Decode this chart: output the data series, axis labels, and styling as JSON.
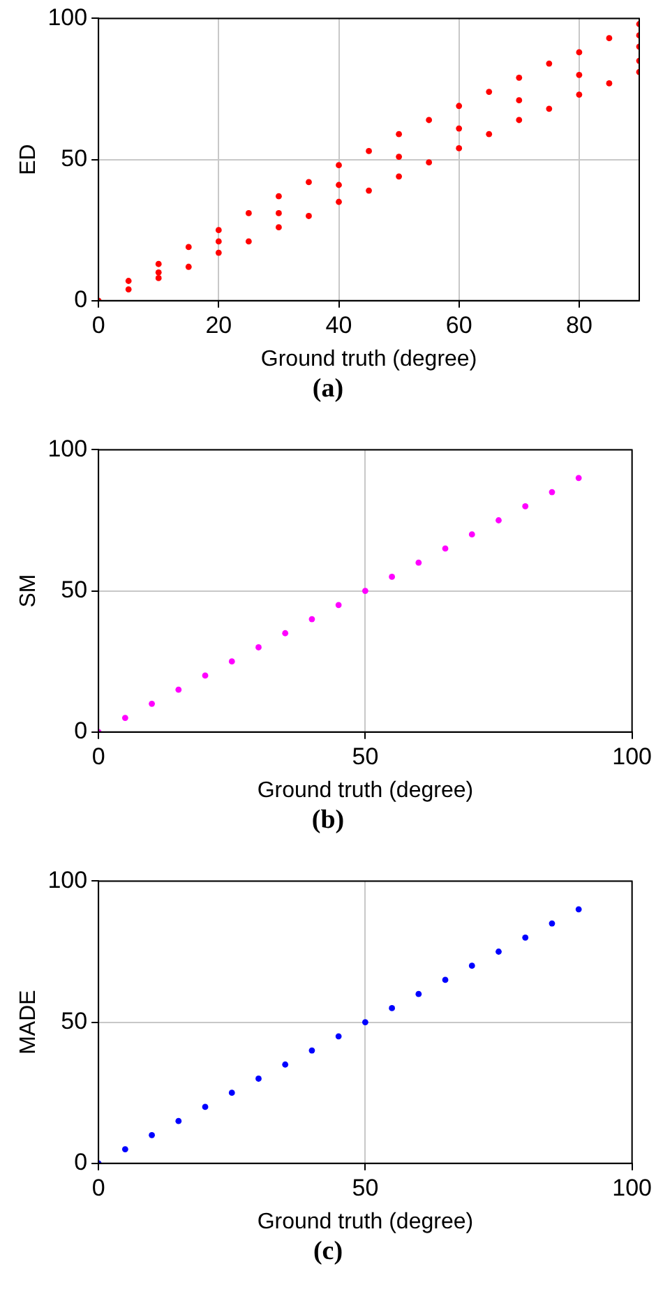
{
  "chart_data": [
    {
      "type": "scatter",
      "xlabel": "Ground truth (degree)",
      "ylabel": "ED",
      "xlim": [
        0,
        90
      ],
      "xticks": [
        0,
        20,
        40,
        60,
        80
      ],
      "ylim": [
        0,
        100
      ],
      "yticks": [
        0,
        50,
        100
      ],
      "grid": true,
      "marker": "circle",
      "annotations": [
        "(a)"
      ],
      "series": [
        {
          "color": "#ff0000",
          "x": [
            0,
            5,
            10,
            15,
            20,
            25,
            30,
            35,
            40,
            45,
            50,
            55,
            60,
            65,
            70,
            75,
            80,
            85,
            90,
            5,
            10,
            15,
            20,
            25,
            30,
            35,
            40,
            45,
            50,
            55,
            60,
            65,
            70,
            75,
            80,
            85,
            90,
            10,
            20,
            30,
            40,
            50,
            60,
            70,
            80,
            90,
            90,
            90
          ],
          "values": [
            0,
            7,
            13,
            19,
            25,
            31,
            37,
            42,
            48,
            53,
            59,
            64,
            69,
            74,
            79,
            84,
            88,
            93,
            98,
            4,
            8,
            12,
            17,
            21,
            26,
            30,
            35,
            39,
            44,
            49,
            54,
            59,
            64,
            68,
            73,
            77,
            81,
            10,
            21,
            31,
            41,
            51,
            61,
            71,
            80,
            90,
            85,
            94
          ]
        }
      ]
    },
    {
      "type": "scatter",
      "xlabel": "Ground truth (degree)",
      "ylabel": "SM",
      "xlim": [
        0,
        100
      ],
      "xticks": [
        0,
        50,
        100
      ],
      "ylim": [
        0,
        100
      ],
      "yticks": [
        0,
        50,
        100
      ],
      "grid": true,
      "marker": "circle",
      "annotations": [
        "(b)"
      ],
      "series": [
        {
          "color": "#ff00ff",
          "x": [
            0,
            5,
            10,
            15,
            20,
            25,
            30,
            35,
            40,
            45,
            50,
            55,
            60,
            65,
            70,
            75,
            80,
            85,
            90
          ],
          "values": [
            0,
            5,
            10,
            15,
            20,
            25,
            30,
            35,
            40,
            45,
            50,
            55,
            60,
            65,
            70,
            75,
            80,
            85,
            90
          ]
        }
      ]
    },
    {
      "type": "scatter",
      "xlabel": "Ground truth (degree)",
      "ylabel": "MADE",
      "xlim": [
        0,
        100
      ],
      "xticks": [
        0,
        50,
        100
      ],
      "ylim": [
        0,
        100
      ],
      "yticks": [
        0,
        50,
        100
      ],
      "grid": true,
      "marker": "circle",
      "annotations": [
        "(c)"
      ],
      "series": [
        {
          "color": "#0000ff",
          "x": [
            0,
            5,
            10,
            15,
            20,
            25,
            30,
            35,
            40,
            45,
            50,
            55,
            60,
            65,
            70,
            75,
            80,
            85,
            90
          ],
          "values": [
            0,
            5,
            10,
            15,
            20,
            25,
            30,
            35,
            40,
            45,
            50,
            55,
            60,
            65,
            70,
            75,
            80,
            85,
            90
          ]
        }
      ]
    }
  ]
}
